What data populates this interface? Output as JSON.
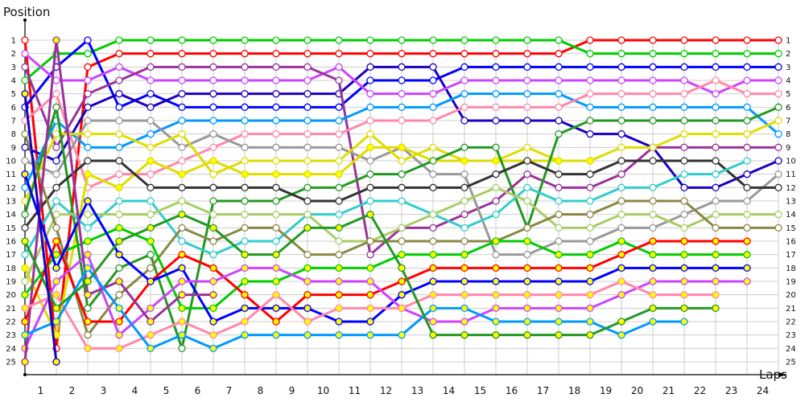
{
  "chart_data": {
    "type": "line",
    "title": "",
    "ylabel": "Position",
    "xlabel": "Laps",
    "y_ticks": [
      "1",
      "2",
      "3",
      "4",
      "5",
      "6",
      "7",
      "8",
      "9",
      "10",
      "11",
      "12",
      "13",
      "14",
      "15",
      "16",
      "17",
      "18",
      "19",
      "20",
      "21",
      "22",
      "23",
      "24",
      "25"
    ],
    "x_ticks": [
      "1",
      "2",
      "3",
      "4",
      "5",
      "6",
      "7",
      "8",
      "9",
      "10",
      "11",
      "12",
      "13",
      "14",
      "15",
      "16",
      "17",
      "18",
      "19",
      "20",
      "21",
      "22",
      "23",
      "24"
    ],
    "ylim": [
      1,
      25
    ],
    "y_inverted": true,
    "grid": true,
    "legend": "none",
    "marker_indices": [
      0,
      1,
      2,
      3,
      4,
      5,
      6,
      7,
      8,
      9,
      10,
      11,
      12,
      13,
      14,
      15,
      16,
      17,
      18,
      19,
      20,
      21,
      22,
      23,
      24
    ],
    "series": [
      {
        "name": "red",
        "color": "#ff0000",
        "fill": "white",
        "values": [
          1,
          24,
          3,
          2,
          2,
          2,
          2,
          2,
          2,
          2,
          2,
          2,
          2,
          2,
          2,
          2,
          2,
          2,
          1,
          1,
          1,
          1,
          1,
          1,
          1
        ]
      },
      {
        "name": "green",
        "color": "#00cc00",
        "fill": "white",
        "values": [
          4,
          2,
          2,
          1,
          1,
          1,
          1,
          1,
          1,
          1,
          1,
          1,
          1,
          1,
          1,
          1,
          1,
          1,
          2,
          2,
          2,
          2,
          2,
          2,
          2
        ]
      },
      {
        "name": "blue",
        "color": "#0000ff",
        "fill": "white",
        "values": [
          6,
          3,
          1,
          6,
          5,
          6,
          6,
          6,
          6,
          6,
          6,
          4,
          4,
          4,
          3,
          3,
          3,
          3,
          3,
          3,
          3,
          3,
          3,
          3,
          3
        ]
      },
      {
        "name": "navy",
        "color": "#1a00c0",
        "fill": "white",
        "values": [
          9,
          10,
          6,
          5,
          6,
          5,
          5,
          5,
          5,
          5,
          5,
          3,
          3,
          3,
          7,
          7,
          7,
          7,
          8,
          8,
          9,
          12,
          12,
          11,
          10
        ]
      },
      {
        "name": "violet",
        "color": "#cc44ff",
        "fill": "white",
        "values": [
          2,
          4,
          4,
          3,
          4,
          4,
          4,
          4,
          4,
          4,
          3,
          5,
          5,
          5,
          4,
          4,
          4,
          4,
          4,
          4,
          4,
          4,
          5,
          4,
          4
        ]
      },
      {
        "name": "purple",
        "color": "#993399",
        "fill": "white",
        "values": [
          3,
          9,
          5,
          4,
          3,
          3,
          3,
          3,
          3,
          3,
          4,
          17,
          15,
          15,
          14,
          13,
          11,
          12,
          12,
          11,
          9,
          9,
          9,
          9,
          9
        ]
      },
      {
        "name": "sky",
        "color": "#0099ff",
        "fill": "white",
        "values": [
          12,
          7,
          9,
          9,
          8,
          7,
          7,
          7,
          7,
          7,
          7,
          6,
          6,
          6,
          5,
          5,
          5,
          5,
          6,
          6,
          6,
          6,
          6,
          6,
          8
        ]
      },
      {
        "name": "pink",
        "color": "#ff88aa",
        "fill": "white",
        "values": [
          7,
          5,
          12,
          11,
          11,
          10,
          9,
          8,
          8,
          8,
          8,
          7,
          7,
          7,
          6,
          6,
          6,
          6,
          5,
          5,
          5,
          5,
          4,
          5,
          5
        ]
      },
      {
        "name": "gray",
        "color": "#999999",
        "fill": "white",
        "values": [
          10,
          11,
          7,
          7,
          7,
          9,
          8,
          9,
          9,
          9,
          9,
          10,
          9,
          11,
          11,
          17,
          17,
          16,
          16,
          15,
          15,
          14,
          13,
          13,
          11
        ]
      },
      {
        "name": "yellow",
        "color": "#dddd00",
        "fill": "white",
        "values": [
          13,
          8,
          8,
          8,
          9,
          8,
          11,
          10,
          10,
          10,
          10,
          8,
          10,
          9,
          10,
          10,
          9,
          10,
          10,
          9,
          9,
          8,
          8,
          8,
          7
        ]
      },
      {
        "name": "yellow-filled",
        "color": "#dddd00",
        "fill": "yellow",
        "values": [
          18,
          23,
          11,
          12,
          10,
          11,
          10,
          11,
          11,
          11,
          11,
          9,
          9,
          10,
          10,
          10,
          10,
          10,
          10
        ]
      },
      {
        "name": "dark-green",
        "color": "#229922",
        "fill": "white",
        "values": [
          14,
          6,
          21,
          18,
          17,
          24,
          13,
          13,
          13,
          12,
          12,
          11,
          11,
          10,
          9,
          9,
          15,
          8,
          7,
          7,
          7,
          7,
          7,
          7,
          6
        ]
      },
      {
        "name": "charcoal",
        "color": "#333333",
        "fill": "white",
        "values": [
          15,
          12,
          10,
          10,
          12,
          12,
          12,
          12,
          12,
          13,
          13,
          12,
          12,
          12,
          12,
          11,
          10,
          11,
          11,
          10,
          10,
          10,
          10,
          12,
          12
        ]
      },
      {
        "name": "teal",
        "color": "#33cccc",
        "fill": "white",
        "values": [
          17,
          13,
          15,
          13,
          13,
          16,
          17,
          16,
          16,
          14,
          14,
          13,
          13,
          14,
          15,
          14,
          12,
          13,
          13,
          12,
          12,
          11,
          11,
          10
        ]
      },
      {
        "name": "light-green",
        "color": "#aacc66",
        "fill": "white",
        "values": [
          19,
          14,
          14,
          14,
          14,
          13,
          14,
          14,
          14,
          14,
          16,
          16,
          15,
          14,
          13,
          12,
          13,
          15,
          15,
          14,
          14,
          15,
          14,
          14,
          14
        ]
      },
      {
        "name": "olive",
        "color": "#888844",
        "fill": "white",
        "values": [
          8,
          15,
          23,
          20,
          18,
          15,
          16,
          15,
          15,
          17,
          17,
          16,
          16,
          16,
          16,
          16,
          15,
          14,
          14,
          13,
          13,
          13,
          15,
          15,
          15
        ]
      },
      {
        "name": "green-filled",
        "color": "#00cc00",
        "fill": "yellow",
        "values": [
          20,
          17,
          16,
          15,
          16,
          21,
          21,
          19,
          19,
          18,
          18,
          18,
          17,
          17,
          17,
          16,
          16,
          17,
          17,
          16,
          17,
          17,
          17,
          17
        ]
      },
      {
        "name": "red-filled",
        "color": "#ff0000",
        "fill": "yellow",
        "values": [
          22,
          16,
          22,
          22,
          19,
          17,
          18,
          20,
          22,
          20,
          20,
          20,
          19,
          18,
          18,
          18,
          18,
          18,
          18,
          17,
          16,
          16,
          16,
          16
        ]
      },
      {
        "name": "blue-filled",
        "color": "#0000ff",
        "fill": "yellow",
        "values": [
          11,
          18,
          13,
          17,
          19,
          18,
          22,
          21,
          21,
          21,
          22,
          22,
          20,
          19,
          19,
          19,
          19,
          19,
          19,
          18,
          18,
          18,
          18,
          18
        ]
      },
      {
        "name": "violet-filled",
        "color": "#cc44ff",
        "fill": "yellow",
        "values": [
          24,
          19,
          17,
          23,
          21,
          19,
          19,
          18,
          18,
          19,
          19,
          19,
          21,
          22,
          22,
          21,
          21,
          21,
          21,
          20,
          19,
          19,
          19,
          19
        ]
      },
      {
        "name": "purple-filled",
        "color": "#993399",
        "fill": "yellow",
        "values": [
          25,
          1,
          20,
          19,
          22,
          20,
          20
        ]
      },
      {
        "name": "pink-filled",
        "color": "#ff88aa",
        "fill": "yellow",
        "values": [
          21,
          20,
          24,
          24,
          23,
          22,
          23,
          22,
          20,
          22,
          21,
          21,
          21,
          20,
          20,
          20,
          20,
          20,
          20,
          19,
          20,
          20,
          20
        ]
      },
      {
        "name": "sky-filled",
        "color": "#0099ff",
        "fill": "yellow",
        "values": [
          23,
          22,
          18,
          21,
          24,
          23,
          24,
          23,
          23,
          23,
          23,
          23,
          23,
          21,
          21,
          22,
          22,
          22,
          22,
          23,
          22,
          22
        ]
      },
      {
        "name": "dark-green-filled",
        "color": "#229922",
        "fill": "yellow",
        "values": [
          16,
          21,
          19,
          16,
          15,
          14,
          15,
          17,
          17,
          15,
          15,
          14,
          18,
          23,
          23,
          23,
          23,
          23,
          23,
          22,
          21,
          21,
          21
        ]
      },
      {
        "name": "navy-filled",
        "color": "#1a00c0",
        "fill": "yellow",
        "values": [
          5,
          25
        ]
      }
    ]
  }
}
